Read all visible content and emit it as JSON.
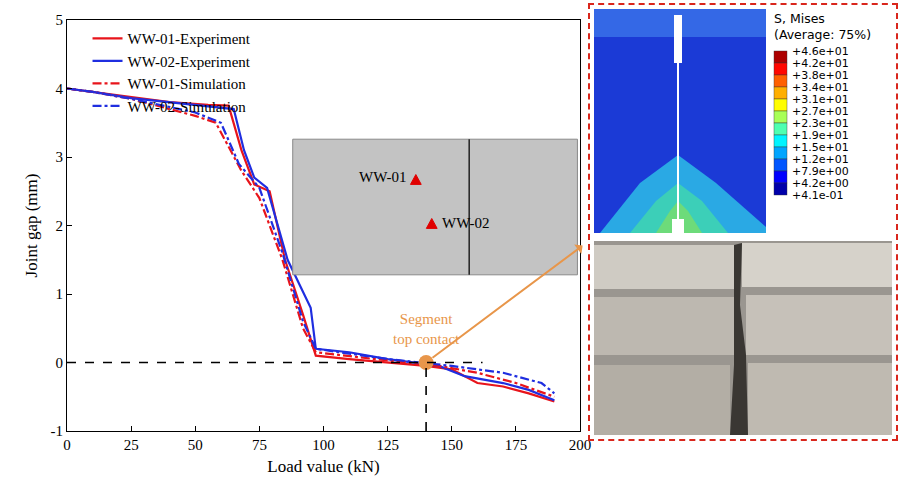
{
  "chart_data": {
    "type": "line",
    "xlabel": "Load value (kN)",
    "ylabel": "Joint gap (mm)",
    "xlim": [
      0,
      200
    ],
    "ylim": [
      -1,
      5
    ],
    "xticks": [
      0,
      25,
      50,
      75,
      100,
      125,
      150,
      175,
      200
    ],
    "yticks": [
      -1,
      0,
      1,
      2,
      3,
      4,
      5
    ],
    "grid": false,
    "legend": "top",
    "series": [
      {
        "name": "WW-01-Experiment",
        "color": "#e8141b",
        "line_style": "solid",
        "x": [
          0,
          10,
          25,
          40,
          55,
          63,
          68,
          73,
          79,
          85,
          92,
          96,
          97,
          110,
          125,
          140,
          150,
          160,
          170,
          180,
          190
        ],
        "values": [
          4.0,
          3.95,
          3.87,
          3.8,
          3.76,
          3.75,
          3.1,
          2.6,
          2.5,
          1.5,
          0.7,
          0.2,
          0.1,
          0.05,
          0.0,
          -0.05,
          -0.1,
          -0.3,
          -0.35,
          -0.45,
          -0.57
        ]
      },
      {
        "name": "WW-02-Experiment",
        "color": "#1f2ee0",
        "line_style": "solid",
        "x": [
          0,
          10,
          25,
          40,
          55,
          65,
          69,
          73,
          78,
          86,
          95,
          97,
          110,
          125,
          145,
          155,
          170,
          180,
          190
        ],
        "values": [
          4.0,
          3.95,
          3.86,
          3.8,
          3.74,
          3.7,
          3.1,
          2.7,
          2.55,
          1.5,
          0.8,
          0.2,
          0.15,
          0.05,
          -0.05,
          -0.2,
          -0.3,
          -0.4,
          -0.55
        ]
      },
      {
        "name": "WW-01-Simulation",
        "color": "#e8141b",
        "line_style": "dashdot",
        "x": [
          0,
          10,
          25,
          50,
          58,
          68,
          75,
          84,
          92,
          97,
          120,
          145,
          160,
          175,
          190
        ],
        "values": [
          4.0,
          3.95,
          3.85,
          3.6,
          3.5,
          2.8,
          2.4,
          1.5,
          0.5,
          0.15,
          0.05,
          -0.05,
          -0.15,
          -0.3,
          -0.5
        ]
      },
      {
        "name": "WW-02-Simulation",
        "color": "#1f2ee0",
        "line_style": "dashdot",
        "x": [
          0,
          10,
          25,
          50,
          60,
          67,
          75,
          84,
          92,
          97,
          125,
          150,
          170,
          185,
          190
        ],
        "values": [
          4.0,
          3.95,
          3.85,
          3.65,
          3.5,
          2.9,
          2.55,
          1.6,
          0.6,
          0.2,
          0.05,
          -0.05,
          -0.15,
          -0.3,
          -0.45
        ]
      }
    ],
    "reference_lines": [
      {
        "y": 0,
        "x": [
          0,
          162
        ]
      },
      {
        "x": 140,
        "y": [
          -1,
          0
        ]
      }
    ],
    "annotation": {
      "lines": [
        "Segment",
        "top contact"
      ],
      "x": 140,
      "y": 0,
      "color": "#e8964a"
    },
    "inset": {
      "labels": [
        "WW-01",
        "WW-02"
      ],
      "marker_color": "#e00000"
    }
  },
  "stress_panel": {
    "title": "S, Mises",
    "subtitle": "(Average: 75%)",
    "levels": [
      {
        "value": 46,
        "label": "+4.6e+01"
      },
      {
        "value": 42,
        "label": "+4.2e+01"
      },
      {
        "value": 38,
        "label": "+3.8e+01"
      },
      {
        "value": 34,
        "label": "+3.4e+01"
      },
      {
        "value": 31,
        "label": "+3.1e+01"
      },
      {
        "value": 27,
        "label": "+2.7e+01"
      },
      {
        "value": 23,
        "label": "+2.3e+01"
      },
      {
        "value": 19,
        "label": "+1.9e+01"
      },
      {
        "value": 15,
        "label": "+1.5e+01"
      },
      {
        "value": 12,
        "label": "+1.2e+01"
      },
      {
        "value": 7.9,
        "label": "+7.9e+00"
      },
      {
        "value": 4.2,
        "label": "+4.2e+00"
      },
      {
        "value": 0.41,
        "label": "+4.1e-01"
      }
    ]
  }
}
